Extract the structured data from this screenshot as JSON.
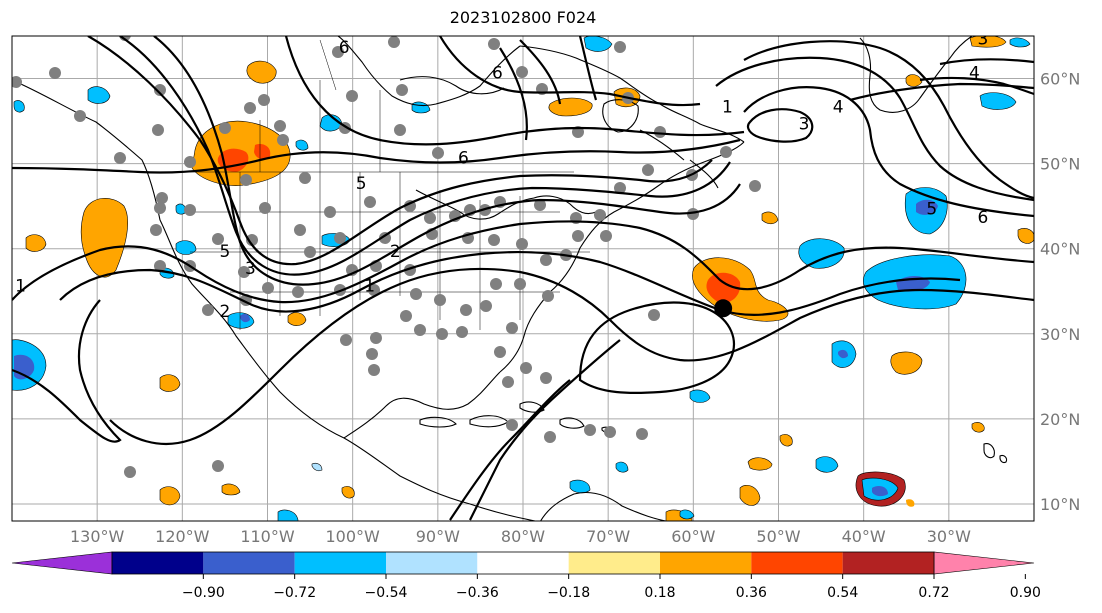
{
  "title": "2023102800 F024",
  "map": {
    "lon_range": [
      -140,
      -20
    ],
    "lat_range": [
      8,
      65
    ],
    "lon_ticks": [
      {
        "value": -130,
        "label": "130°W"
      },
      {
        "value": -120,
        "label": "120°W"
      },
      {
        "value": -110,
        "label": "110°W"
      },
      {
        "value": -100,
        "label": "100°W"
      },
      {
        "value": -90,
        "label": "90°W"
      },
      {
        "value": -80,
        "label": "80°W"
      },
      {
        "value": -70,
        "label": "70°W"
      },
      {
        "value": -60,
        "label": "60°W"
      },
      {
        "value": -50,
        "label": "50°W"
      },
      {
        "value": -40,
        "label": "40°W"
      },
      {
        "value": -30,
        "label": "30°W"
      }
    ],
    "lat_ticks": [
      {
        "value": 10,
        "label": "10°N"
      },
      {
        "value": 20,
        "label": "20°N"
      },
      {
        "value": 30,
        "label": "30°N"
      },
      {
        "value": 40,
        "label": "40°N"
      },
      {
        "value": 50,
        "label": "50°N"
      },
      {
        "value": 60,
        "label": "60°N"
      }
    ],
    "contour_labels": [
      {
        "text": "6",
        "lon": -101,
        "lat": 63
      },
      {
        "text": "6",
        "lon": -83,
        "lat": 60
      },
      {
        "text": "6",
        "lon": -87,
        "lat": 50
      },
      {
        "text": "5",
        "lon": -99,
        "lat": 47
      },
      {
        "text": "5",
        "lon": -115,
        "lat": 39
      },
      {
        "text": "3",
        "lon": -112,
        "lat": 37
      },
      {
        "text": "2",
        "lon": -115,
        "lat": 32
      },
      {
        "text": "2",
        "lon": -95,
        "lat": 39
      },
      {
        "text": "1",
        "lon": -98,
        "lat": 35
      },
      {
        "text": "1",
        "lon": -139,
        "lat": 35
      },
      {
        "text": "1",
        "lon": -56,
        "lat": 56
      },
      {
        "text": "3",
        "lon": -47,
        "lat": 54
      },
      {
        "text": "4",
        "lon": -43,
        "lat": 56
      },
      {
        "text": "4",
        "lon": -27,
        "lat": 60
      },
      {
        "text": "5",
        "lon": -32,
        "lat": 44
      },
      {
        "text": "6",
        "lon": -26,
        "lat": 43
      },
      {
        "text": "3",
        "lon": -26,
        "lat": 64
      }
    ],
    "station_marker": {
      "lon": -56.5,
      "lat": 33
    }
  },
  "colorbar": {
    "colors": [
      "#9b30d9",
      "#00008b",
      "#3a5fcd",
      "#00bfff",
      "#b0e2ff",
      "#ffffff",
      "#ffec8b",
      "#ffa500",
      "#ff4500",
      "#b22222",
      "#ff82ab"
    ],
    "tick_labels": [
      "−0.90",
      "−0.72",
      "−0.54",
      "−0.36",
      "−0.18",
      "0.18",
      "0.36",
      "0.54",
      "0.72",
      "0.90"
    ]
  }
}
